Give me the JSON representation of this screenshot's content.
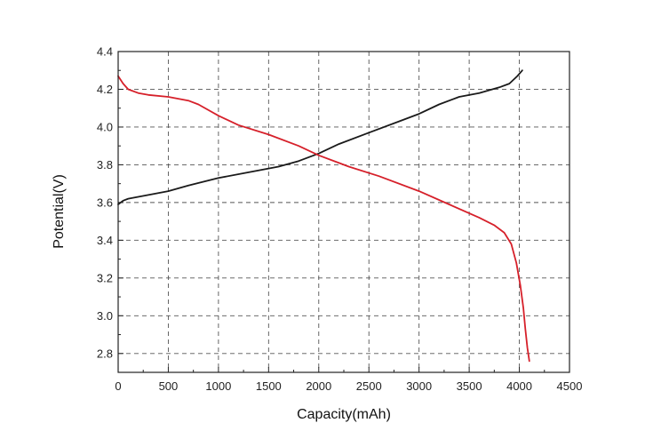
{
  "chart_data": {
    "type": "line",
    "title": "",
    "xlabel": "Capacity(mAh)",
    "ylabel": "Potential(V)",
    "xlim": [
      0,
      4500
    ],
    "ylim": [
      2.7,
      4.4
    ],
    "x_ticks": [
      0,
      500,
      1000,
      1500,
      2000,
      2500,
      3000,
      3500,
      4000,
      4500
    ],
    "y_ticks": [
      2.8,
      3.0,
      3.2,
      3.4,
      3.6,
      3.8,
      4.0,
      4.2,
      4.4
    ],
    "x_tick_labels": [
      "0",
      "500",
      "1000",
      "1500",
      "2000",
      "2500",
      "3000",
      "3500",
      "4000",
      "4500"
    ],
    "y_tick_labels": [
      "2.8",
      "3.0",
      "3.2",
      "3.4",
      "3.6",
      "3.8",
      "4.0",
      "4.2",
      "4.4"
    ],
    "grid": true,
    "series": [
      {
        "color": "#1a1a1a",
        "x": [
          0,
          50,
          100,
          200,
          300,
          500,
          700,
          1000,
          1300,
          1600,
          1800,
          2000,
          2200,
          2500,
          2800,
          3000,
          3200,
          3400,
          3600,
          3800,
          3900,
          3980,
          4030
        ],
        "y": [
          3.59,
          3.61,
          3.62,
          3.63,
          3.64,
          3.66,
          3.69,
          3.73,
          3.76,
          3.79,
          3.82,
          3.86,
          3.91,
          3.97,
          4.03,
          4.07,
          4.12,
          4.16,
          4.18,
          4.21,
          4.23,
          4.27,
          4.3
        ]
      },
      {
        "color": "#d6202a",
        "x": [
          0,
          50,
          100,
          200,
          300,
          500,
          700,
          800,
          1000,
          1200,
          1500,
          1800,
          2000,
          2300,
          2600,
          3000,
          3300,
          3600,
          3750,
          3850,
          3920,
          3970,
          4010,
          4040,
          4060,
          4080,
          4100
        ],
        "y": [
          4.27,
          4.23,
          4.2,
          4.18,
          4.17,
          4.16,
          4.14,
          4.12,
          4.06,
          4.01,
          3.96,
          3.9,
          3.85,
          3.79,
          3.74,
          3.66,
          3.59,
          3.52,
          3.48,
          3.44,
          3.38,
          3.28,
          3.16,
          3.04,
          2.93,
          2.83,
          2.76
        ]
      }
    ]
  }
}
